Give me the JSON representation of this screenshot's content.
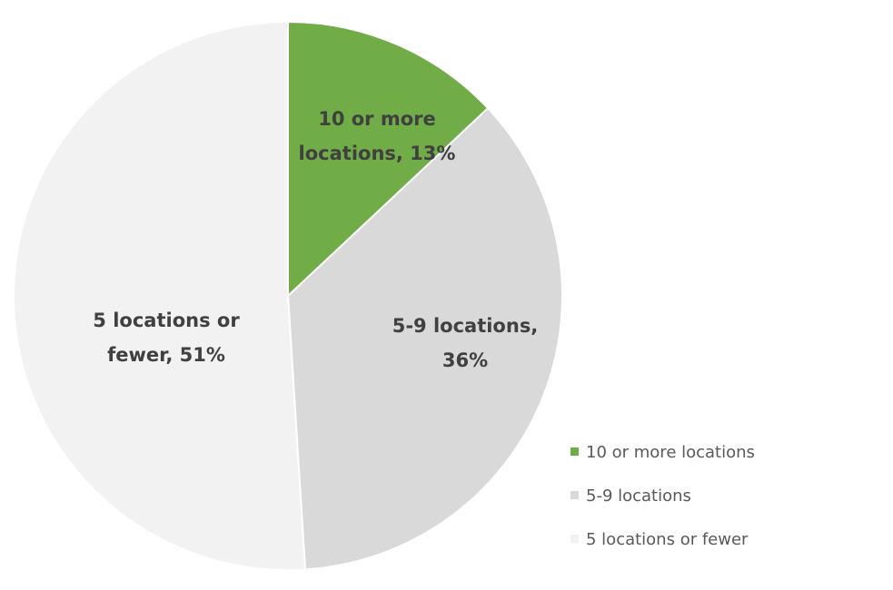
{
  "chart_data": {
    "type": "pie",
    "title": "",
    "start": "top",
    "direction": "clockwise",
    "slices": [
      {
        "label": "10 or more locations",
        "value": 13,
        "color": "#70ad47",
        "data_label": [
          "10 or more",
          "locations, 13%"
        ]
      },
      {
        "label": "5-9 locations",
        "value": 36,
        "color": "#d9d9d9",
        "data_label": [
          "5-9 locations,",
          "36%"
        ]
      },
      {
        "label": "5 locations or fewer",
        "value": 51,
        "color": "#f2f2f2",
        "data_label": [
          "5 locations or",
          "fewer, 51%"
        ]
      }
    ],
    "legend": {
      "position": "bottom-right"
    }
  }
}
